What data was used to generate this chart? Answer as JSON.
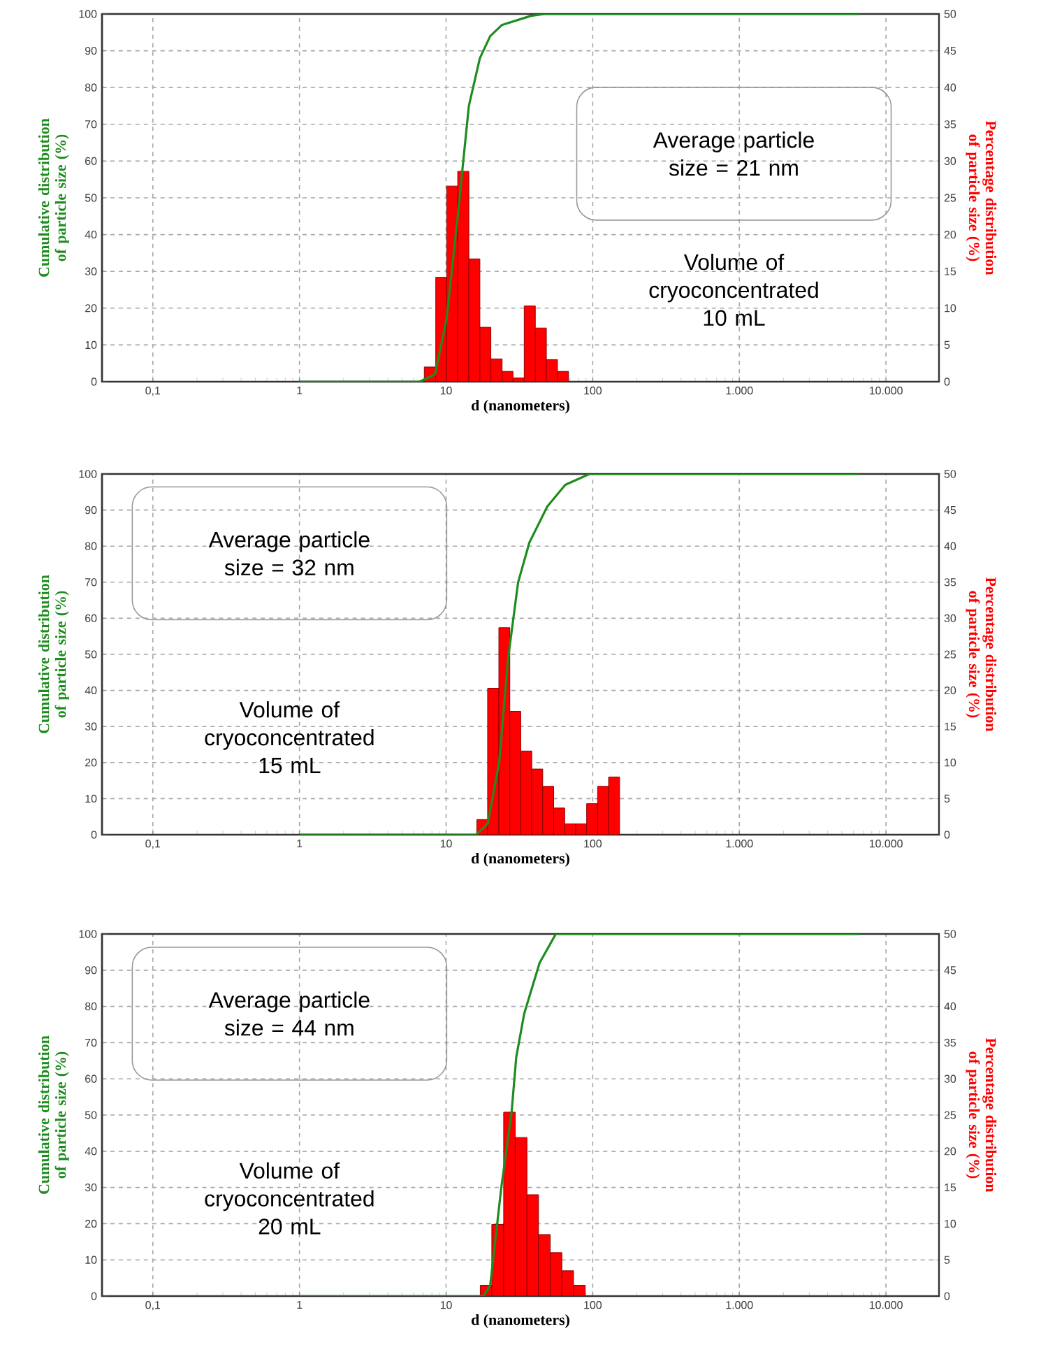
{
  "chart_data": [
    {
      "type": "histogram",
      "xlabel": "d (nanometers)",
      "ylabel": "Cumulative distribution of particle size (%)",
      "y2label": "Percentage distribution of particle size (%)",
      "log": "x",
      "grid": true,
      "xlim": [
        0.045,
        23000
      ],
      "xticks": [
        {
          "value": 0.1,
          "label": "0,1"
        },
        1,
        10,
        100,
        {
          "value": 1000,
          "label": "1.000"
        },
        {
          "value": 10000,
          "label": "10.000"
        }
      ],
      "ylim": [
        0,
        100
      ],
      "yticks": [
        0,
        10,
        20,
        30,
        40,
        50,
        60,
        70,
        80,
        90,
        100
      ],
      "y2lim": [
        0,
        50
      ],
      "y2ticks": [
        0,
        5,
        10,
        15,
        20,
        25,
        30,
        35,
        40,
        45,
        50
      ],
      "annotations": [
        "Average particle size = 21 nm",
        "Volume of cryoconcentrated 10 mL"
      ],
      "series": [
        {
          "axis": "y2",
          "color": "#ff0000",
          "bins": [
            7.1,
            8.5,
            10.1,
            12.0,
            14.3,
            17.0,
            20.2,
            24.1,
            28.6,
            34.1,
            40.6,
            48.3,
            57.5,
            68.4
          ],
          "values": [
            2.0,
            14.2,
            26.6,
            28.6,
            16.7,
            7.4,
            3.1,
            1.4,
            0.5,
            10.3,
            7.3,
            3.0,
            1.4
          ]
        },
        {
          "type": "line",
          "axis": "y",
          "color": "#1e8c1e",
          "x": [
            1,
            6.6,
            8.4,
            10.07,
            12,
            14.3,
            17,
            20,
            24,
            38,
            47,
            6500
          ],
          "values": [
            0,
            0,
            2,
            17,
            45,
            75,
            88,
            94,
            97,
            99.5,
            100,
            100
          ]
        }
      ]
    },
    {
      "type": "histogram",
      "xlabel": "d (nanometers)",
      "ylabel": "Cumulative distribution of particle size (%)",
      "y2label": "Percentage distribution of particle size (%)",
      "log": "x",
      "grid": true,
      "xlim": [
        0.045,
        23000
      ],
      "xticks": [
        {
          "value": 0.1,
          "label": "0,1"
        },
        1,
        10,
        100,
        {
          "value": 1000,
          "label": "1.000"
        },
        {
          "value": 10000,
          "label": "10.000"
        }
      ],
      "ylim": [
        0,
        100
      ],
      "yticks": [
        0,
        10,
        20,
        30,
        40,
        50,
        60,
        70,
        80,
        90,
        100
      ],
      "y2lim": [
        0,
        50
      ],
      "y2ticks": [
        0,
        5,
        10,
        15,
        20,
        25,
        30,
        35,
        40,
        45,
        50
      ],
      "annotations": [
        "Average particle size = 32 nm",
        "Volume of cryoconcentrated 15 mL"
      ],
      "series": [
        {
          "axis": "y2",
          "color": "#ff0000",
          "bins": [
            16.2,
            19.2,
            22.9,
            27.2,
            32.3,
            38.4,
            45.6,
            54.2,
            64.4,
            76.5,
            90.9,
            108,
            128.3,
            152.5
          ],
          "values": [
            2.1,
            20.3,
            28.7,
            17.1,
            11.6,
            9.1,
            6.7,
            3.7,
            1.5,
            1.5,
            4.3,
            6.7,
            8.0
          ]
        },
        {
          "type": "line",
          "axis": "y",
          "color": "#1e8c1e",
          "x": [
            1,
            16,
            19.2,
            23,
            26.5,
            31,
            37,
            49,
            65,
            95,
            6500
          ],
          "values": [
            0,
            0,
            3,
            20,
            49,
            70,
            81,
            91,
            97,
            100,
            100
          ]
        }
      ]
    },
    {
      "type": "histogram",
      "xlabel": "d (nanometers)",
      "ylabel": "Cumulative distribution of particle size (%)",
      "y2label": "Percentage distribution of particle size (%)",
      "log": "x",
      "grid": true,
      "xlim": [
        0.045,
        23000
      ],
      "xticks": [
        {
          "value": 0.1,
          "label": "0,1"
        },
        1,
        10,
        100,
        {
          "value": 1000,
          "label": "1.000"
        },
        {
          "value": 10000,
          "label": "10.000"
        }
      ],
      "ylim": [
        0,
        100
      ],
      "yticks": [
        0,
        10,
        20,
        30,
        40,
        50,
        60,
        70,
        80,
        90,
        100
      ],
      "y2lim": [
        0,
        50
      ],
      "y2ticks": [
        0,
        5,
        10,
        15,
        20,
        25,
        30,
        35,
        40,
        45,
        50
      ],
      "annotations": [
        "Average particle size = 44 nm",
        "Volume of cryoconcentrated 20 mL"
      ],
      "series": [
        {
          "axis": "y2",
          "color": "#ff0000",
          "bins": [
            17.1,
            20.5,
            24.7,
            29.6,
            35.6,
            42.7,
            51.3,
            61.6,
            74.0,
            88.9
          ],
          "values": [
            1.5,
            9.9,
            25.4,
            21.9,
            14.0,
            8.5,
            6.0,
            3.5,
            1.5
          ]
        },
        {
          "type": "line",
          "axis": "y",
          "color": "#1e8c1e",
          "x": [
            1,
            18,
            20,
            23.8,
            28,
            30.1,
            34.1,
            43.4,
            56,
            6500
          ],
          "values": [
            0,
            0,
            3,
            30,
            51,
            66,
            78,
            92,
            100,
            100
          ]
        }
      ]
    }
  ]
}
